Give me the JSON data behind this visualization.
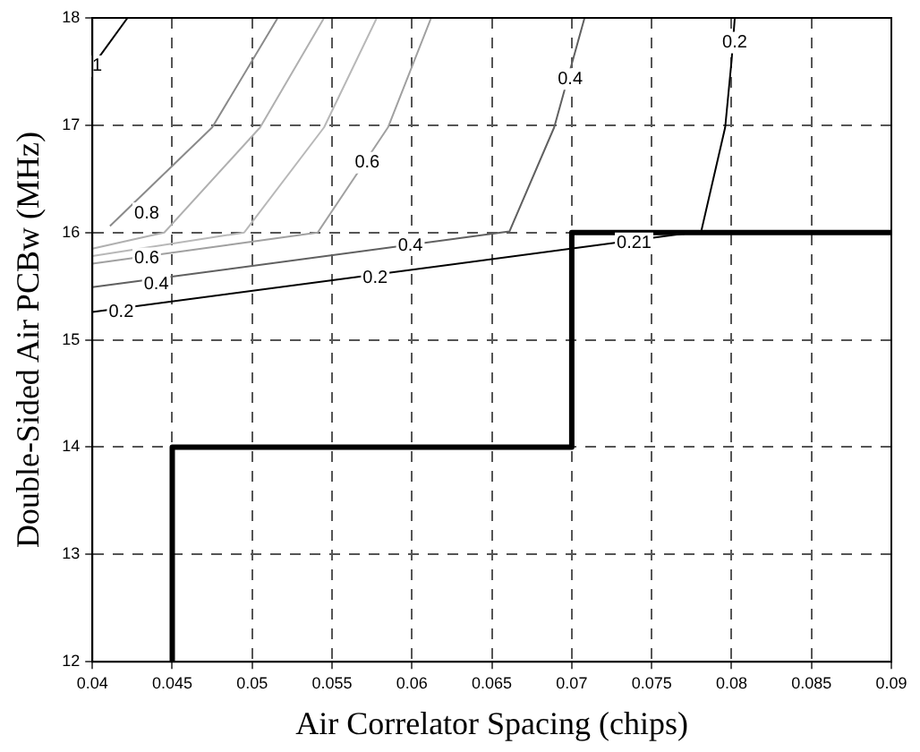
{
  "chart_data": {
    "type": "line",
    "xlabel": "Air Correlator Spacing (chips)",
    "ylabel": "Double-Sided Air PCBw (MHz)",
    "xlim": [
      0.04,
      0.09
    ],
    "xticks": [
      0.04,
      0.045,
      0.05,
      0.055,
      0.06,
      0.065,
      0.07,
      0.075,
      0.08,
      0.085,
      0.09
    ],
    "ylim": [
      12,
      18
    ],
    "yticks": [
      12,
      13,
      14,
      15,
      16,
      17,
      18
    ],
    "grid": true,
    "legend": false,
    "series": [
      {
        "color": "#000000",
        "x": [
          0.0401,
          0.0422
        ],
        "values": [
          17.57,
          18
        ]
      },
      {
        "color": "#8a8a8a",
        "x": [
          0.0411,
          0.0475,
          0.0516
        ],
        "values": [
          16.06,
          16.98,
          18
        ]
      },
      {
        "color": "#b0b0b0",
        "x": [
          0.04,
          0.0445,
          0.0505,
          0.0545
        ],
        "values": [
          15.85,
          16.0,
          16.98,
          18
        ]
      },
      {
        "color": "#b8b8b8",
        "x": [
          0.04,
          0.0495,
          0.0545,
          0.0578
        ],
        "values": [
          15.78,
          16.0,
          16.98,
          18
        ]
      },
      {
        "color": "#a0a0a0",
        "x": [
          0.04,
          0.0541,
          0.0585,
          0.0612
        ],
        "values": [
          15.71,
          16.0,
          16.98,
          18
        ]
      },
      {
        "color": "#606060",
        "x": [
          0.04,
          0.0661,
          0.0689,
          0.0708
        ],
        "values": [
          15.49,
          16.01,
          16.98,
          18
        ]
      },
      {
        "color": "#000000",
        "x": [
          0.04,
          0.0781,
          0.0796,
          0.08,
          0.0802
        ],
        "values": [
          15.26,
          16.01,
          16.98,
          17.6,
          18
        ]
      },
      {
        "type": "step",
        "color": "#000000",
        "x": [
          0.045,
          0.045,
          0.07,
          0.09
        ],
        "values": [
          12,
          14,
          16,
          16
        ]
      }
    ],
    "annotations": [
      {
        "text": "1",
        "x": 0.0403,
        "y": 17.55
      },
      {
        "text": "0.8",
        "x": 0.0434,
        "y": 16.18
      },
      {
        "text": "0.6",
        "x": 0.0434,
        "y": 15.76
      },
      {
        "text": "0.6",
        "x": 0.0572,
        "y": 16.65
      },
      {
        "text": "0.4",
        "x": 0.044,
        "y": 15.52
      },
      {
        "text": "0.2",
        "x": 0.0418,
        "y": 15.26
      },
      {
        "text": "0.4",
        "x": 0.0599,
        "y": 15.88
      },
      {
        "text": "0.2",
        "x": 0.0577,
        "y": 15.58
      },
      {
        "text": "0.4",
        "x": 0.0699,
        "y": 17.43
      },
      {
        "text": "0.2",
        "x": 0.0802,
        "y": 17.77
      },
      {
        "text": "0.21",
        "x": 0.0739,
        "y": 15.9
      }
    ]
  }
}
